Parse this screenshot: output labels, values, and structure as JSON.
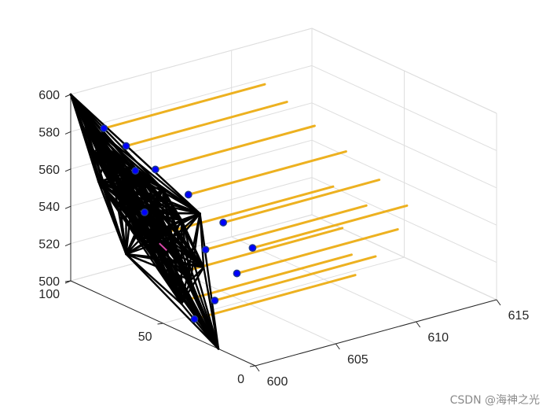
{
  "chart_data": {
    "type": "line3d",
    "title": "",
    "xlabel": "",
    "ylabel": "",
    "zlabel": "",
    "axes": {
      "x": {
        "lim": [
          600,
          615
        ],
        "ticks": [
          600,
          605,
          610,
          615
        ],
        "tick_labels": [
          "600",
          "605",
          "610",
          "615"
        ]
      },
      "y": {
        "lim": [
          0,
          100
        ],
        "ticks": [
          0,
          50,
          100
        ],
        "tick_labels": [
          "0",
          "50",
          "100"
        ]
      },
      "z": {
        "lim": [
          500,
          600
        ],
        "ticks": [
          500,
          520,
          540,
          560,
          580,
          600
        ],
        "tick_labels": [
          "500",
          "520",
          "540",
          "560",
          "580",
          "600"
        ]
      }
    },
    "grid": true,
    "box": "3d-grid",
    "colors": {
      "cluster_edges": "#000000",
      "trails": "#EDB120",
      "markers": "#0000ff",
      "marker_edge": "#1f3a8a",
      "highlight": "#d946a8"
    },
    "series": [
      {
        "role": "orange-trails",
        "lines": [
          {
            "start": [
              600.4,
              5,
              560
            ],
            "end": [
              610,
              5,
              560
            ]
          },
          {
            "start": [
              600.3,
              20,
              567
            ],
            "end": [
              610,
              20,
              567
            ]
          },
          {
            "start": [
              600.2,
              38,
              574
            ],
            "end": [
              610,
              38,
              574
            ]
          },
          {
            "start": [
              600.1,
              55,
              580
            ],
            "end": [
              610,
              55,
              580
            ]
          },
          {
            "start": [
              600.0,
              70,
              586
            ],
            "end": [
              610,
              70,
              586
            ]
          },
          {
            "start": [
              600.0,
              82,
              590
            ],
            "end": [
              610,
              82,
              590
            ]
          },
          {
            "start": [
              600.0,
              10,
              545
            ],
            "end": [
              610,
              10,
              545
            ]
          },
          {
            "start": [
              600.0,
              27,
              550
            ],
            "end": [
              610,
              27,
              550
            ]
          },
          {
            "start": [
              600.0,
              45,
              552
            ],
            "end": [
              610,
              45,
              552
            ]
          },
          {
            "start": [
              600.0,
              22,
              525
            ],
            "end": [
              610,
              22,
              525
            ]
          },
          {
            "start": [
              600.0,
              40,
              532
            ],
            "end": [
              610,
              40,
              532
            ]
          },
          {
            "start": [
              600.0,
              33,
              510
            ],
            "end": [
              610,
              33,
              510
            ]
          },
          {
            "start": [
              600.0,
              35,
              520
            ],
            "end": [
              610,
              35,
              520
            ]
          }
        ]
      },
      {
        "role": "black-cluster",
        "nodes": [
          [
            600,
            100,
            600
          ],
          [
            600,
            93,
            590
          ],
          [
            600,
            80,
            580
          ],
          [
            600,
            65,
            575
          ],
          [
            600,
            50,
            572
          ],
          [
            600,
            30,
            568
          ],
          [
            600,
            88,
            575
          ],
          [
            600,
            75,
            565
          ],
          [
            600,
            55,
            562
          ],
          [
            600,
            40,
            560
          ],
          [
            600,
            70,
            550
          ],
          [
            600,
            60,
            555
          ],
          [
            600,
            45,
            548
          ],
          [
            600,
            85,
            560
          ],
          [
            600,
            20,
            500
          ],
          [
            600,
            28,
            540
          ],
          [
            600,
            35,
            530
          ],
          [
            600,
            50,
            535
          ],
          [
            600,
            62,
            540
          ],
          [
            600,
            70,
            528
          ],
          [
            600,
            40,
            515
          ]
        ]
      },
      {
        "role": "blue-markers",
        "points": [
          [
            600.4,
            5,
            560
          ],
          [
            600.3,
            20,
            567
          ],
          [
            600.2,
            38,
            574
          ],
          [
            600.1,
            55,
            580
          ],
          [
            600.0,
            70,
            586
          ],
          [
            600.0,
            82,
            590
          ],
          [
            600.0,
            10,
            545
          ],
          [
            600.0,
            27,
            550
          ],
          [
            600.0,
            22,
            525
          ],
          [
            600.0,
            33,
            510
          ],
          [
            600.0,
            65,
            575
          ],
          [
            600.0,
            60,
            555
          ]
        ]
      }
    ]
  },
  "watermark": "CSDN @海神之光"
}
